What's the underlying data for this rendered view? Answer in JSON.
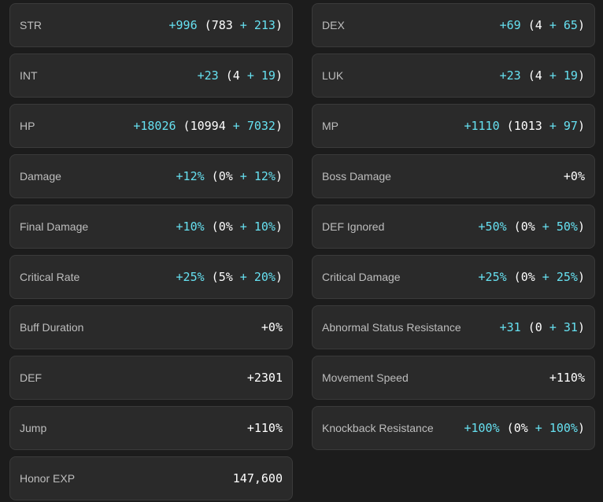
{
  "colors": {
    "background": "#1c1c1c",
    "card": "#2a2a2a",
    "border": "#3a3a3a",
    "label": "#bdbdbd",
    "accent_cyan": "#66e0f0",
    "value_white": "#ffffff"
  },
  "stats": [
    {
      "id": "str",
      "label": "STR",
      "total": "+996",
      "base": "783",
      "bonus": "213"
    },
    {
      "id": "dex",
      "label": "DEX",
      "total": "+69",
      "base": "4",
      "bonus": "65"
    },
    {
      "id": "int",
      "label": "INT",
      "total": "+23",
      "base": "4",
      "bonus": "19"
    },
    {
      "id": "luk",
      "label": "LUK",
      "total": "+23",
      "base": "4",
      "bonus": "19"
    },
    {
      "id": "hp",
      "label": "HP",
      "total": "+18026",
      "base": "10994",
      "bonus": "7032"
    },
    {
      "id": "mp",
      "label": "MP",
      "total": "+1110",
      "base": "1013",
      "bonus": "97"
    },
    {
      "id": "damage",
      "label": "Damage",
      "total": "+12%",
      "base": "0%",
      "bonus": "12%"
    },
    {
      "id": "boss-damage",
      "label": "Boss Damage",
      "total": "+0%"
    },
    {
      "id": "final-damage",
      "label": "Final Damage",
      "total": "+10%",
      "base": "0%",
      "bonus": "10%"
    },
    {
      "id": "def-ignored",
      "label": "DEF Ignored",
      "total": "+50%",
      "base": "0%",
      "bonus": "50%"
    },
    {
      "id": "critical-rate",
      "label": "Critical Rate",
      "total": "+25%",
      "base": "5%",
      "bonus": "20%"
    },
    {
      "id": "critical-damage",
      "label": "Critical Damage",
      "total": "+25%",
      "base": "0%",
      "bonus": "25%"
    },
    {
      "id": "buff-duration",
      "label": "Buff Duration",
      "total": "+0%"
    },
    {
      "id": "abnormal-status-resistance",
      "label": "Abnormal Status Resistance",
      "total": "+31",
      "base": "0",
      "bonus": "31"
    },
    {
      "id": "def",
      "label": "DEF",
      "total": "+2301"
    },
    {
      "id": "movement-speed",
      "label": "Movement Speed",
      "total": "+110%"
    },
    {
      "id": "jump",
      "label": "Jump",
      "total": "+110%"
    },
    {
      "id": "knockback-resistance",
      "label": "Knockback Resistance",
      "total": "+100%",
      "base": "0%",
      "bonus": "100%"
    },
    {
      "id": "honor-exp",
      "label": "Honor EXP",
      "total": "147,600"
    }
  ]
}
